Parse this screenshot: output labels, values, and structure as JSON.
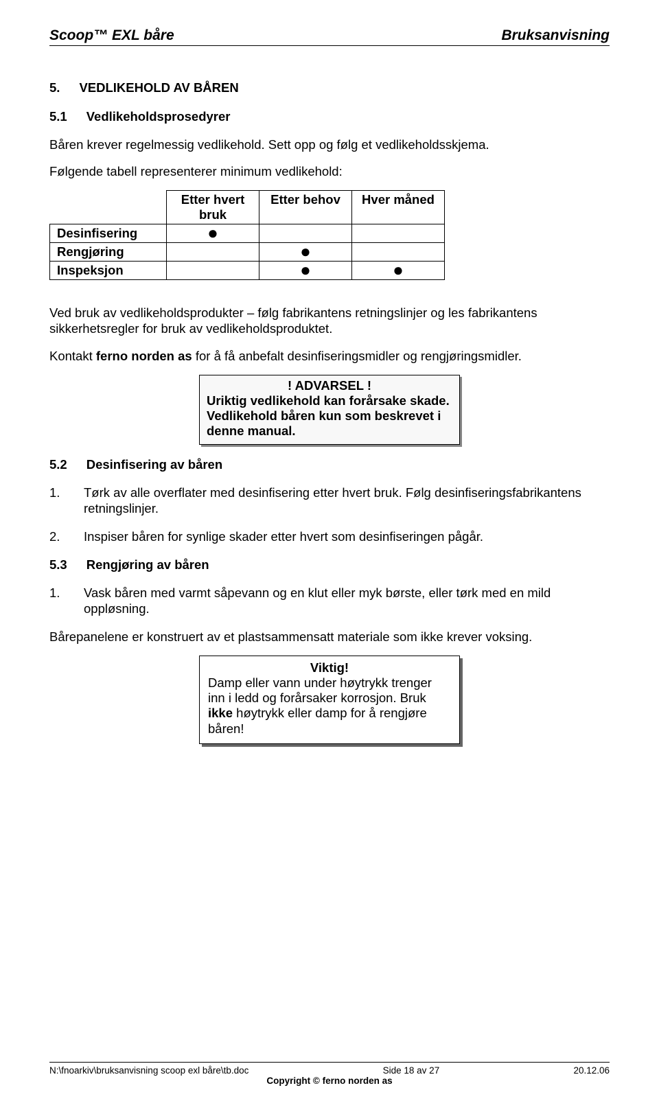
{
  "header": {
    "left": "Scoop™ EXL båre",
    "right": "Bruksanvisning"
  },
  "section5": {
    "num": "5.",
    "title": "VEDLIKEHOLD AV BÅREN"
  },
  "s51": {
    "num": "5.1",
    "title": "Vedlikeholdsprosedyrer",
    "p1": "Båren krever regelmessig vedlikehold. Sett opp og følg et vedlikeholdsskjema.",
    "p2": "Følgende tabell representerer minimum vedlikehold:"
  },
  "table": {
    "col1": "Etter hvert bruk",
    "col2": "Etter behov",
    "col3": "Hver måned",
    "rows": [
      {
        "label": "Desinfisering",
        "c1": "●",
        "c2": "",
        "c3": ""
      },
      {
        "label": "Rengjøring",
        "c1": "",
        "c2": "●",
        "c3": ""
      },
      {
        "label": "Inspeksjon",
        "c1": "",
        "c2": "●",
        "c3": "●"
      }
    ]
  },
  "afterTable": {
    "p1": "Ved bruk av vedlikeholdsprodukter – følg fabrikantens retningslinjer og les fabrikantens sikkerhetsregler for bruk av vedlikeholdsproduktet.",
    "p2_pre": "Kontakt ",
    "p2_bold": "ferno norden as",
    "p2_post": " for å få anbefalt desinfiseringsmidler og rengjøringsmidler."
  },
  "warning": {
    "title": "! ADVARSEL !",
    "body": "Uriktig vedlikehold kan forårsake skade. Vedlikehold båren kun som beskrevet i denne manual."
  },
  "s52": {
    "num": "5.2",
    "title": "Desinfisering av båren",
    "items": [
      "Tørk av alle overflater med desinfisering etter hvert bruk. Følg desinfiseringsfabrikantens retningslinjer.",
      "Inspiser båren for synlige skader etter hvert som desinfiseringen pågår."
    ]
  },
  "s53": {
    "num": "5.3",
    "title": "Rengjøring av båren",
    "items": [
      "Vask båren med varmt såpevann og en klut eller myk børste, eller tørk med en mild oppløsning."
    ],
    "p_after": "Bårepanelene er konstruert av et plastsammensatt materiale som ikke krever voksing."
  },
  "important": {
    "title": "Viktig!",
    "body_pre": "Damp eller vann under høytrykk trenger inn i ledd og forårsaker korrosjon. Bruk ",
    "body_bold": "ikke",
    "body_post": " høytrykk eller damp for å rengjøre båren!"
  },
  "footer": {
    "path": "N:\\fnoarkiv\\bruksanvisning scoop exl båre\\tb.doc",
    "page": "Side 18 av 27",
    "copyright": "Copyright © ferno norden as",
    "date": "20.12.06"
  }
}
